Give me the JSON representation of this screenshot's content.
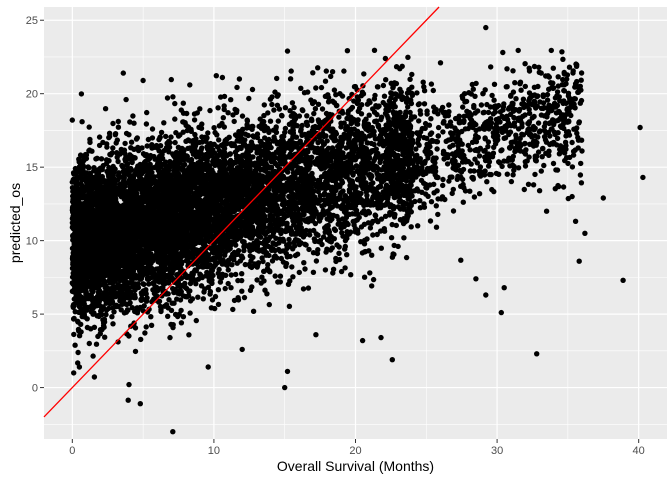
{
  "chart_data": {
    "type": "scatter",
    "title": "",
    "xlabel": "Overall Survival (Months)",
    "ylabel": "predicted_os",
    "xlim": [
      -2.0,
      42.0
    ],
    "ylim": [
      -3.5,
      25.9
    ],
    "x_ticks": [
      0,
      10,
      20,
      30,
      40
    ],
    "y_ticks": [
      0,
      5,
      10,
      15,
      20,
      25
    ],
    "x_tick_labels": [
      "0",
      "10",
      "20",
      "30",
      "40"
    ],
    "y_tick_labels": [
      "0",
      "5",
      "10",
      "15",
      "20",
      "25"
    ],
    "grid": true,
    "background_color": "#ebebeb",
    "gridline_color": "#ffffff",
    "point_color": "#000000",
    "reference_line": {
      "slope": 1,
      "intercept": 0,
      "color": "#ff0000"
    },
    "point_cloud": {
      "description": "dense cloud (~9000 points), predicted_os rises with overall survival",
      "n": 9000,
      "x_range": [
        0,
        36
      ],
      "trend_intercept": 9.8,
      "trend_slope": 0.25,
      "spread": 2.6
    },
    "points": [
      {
        "x": 29.2,
        "y": 24.5
      },
      {
        "x": 15.2,
        "y": 22.9
      },
      {
        "x": 18.9,
        "y": 20.0
      },
      {
        "x": 3.6,
        "y": 21.4
      },
      {
        "x": 26.0,
        "y": 22.1
      },
      {
        "x": 29.0,
        "y": 20.0
      },
      {
        "x": 40.3,
        "y": 14.3
      },
      {
        "x": 40.1,
        "y": 17.7
      },
      {
        "x": 38.9,
        "y": 7.3
      },
      {
        "x": 36.2,
        "y": 10.5
      },
      {
        "x": 37.5,
        "y": 12.9
      },
      {
        "x": 36.0,
        "y": 16.1
      },
      {
        "x": 34.0,
        "y": 17.9
      },
      {
        "x": 33.5,
        "y": 12.0
      },
      {
        "x": 32.8,
        "y": 2.3
      },
      {
        "x": 30.3,
        "y": 5.1
      },
      {
        "x": 29.2,
        "y": 6.3
      },
      {
        "x": 28.5,
        "y": 7.4
      },
      {
        "x": 30.5,
        "y": 6.8
      },
      {
        "x": 35.8,
        "y": 8.6
      },
      {
        "x": 35.3,
        "y": 13.0
      },
      {
        "x": 33.0,
        "y": 13.4
      },
      {
        "x": 7.1,
        "y": -3.0
      },
      {
        "x": 4.8,
        "y": -1.1
      },
      {
        "x": 15.0,
        "y": 0.0
      },
      {
        "x": 15.2,
        "y": 1.1
      },
      {
        "x": 0.5,
        "y": 1.4
      },
      {
        "x": 4.0,
        "y": 0.2
      },
      {
        "x": 0.0,
        "y": 18.2
      },
      {
        "x": 0.1,
        "y": 1.0
      },
      {
        "x": 10.6,
        "y": 21.1
      },
      {
        "x": 11.8,
        "y": 21.0
      },
      {
        "x": 5.0,
        "y": 20.9
      },
      {
        "x": 8.3,
        "y": 20.6
      },
      {
        "x": 22.6,
        "y": 1.9
      },
      {
        "x": 21.8,
        "y": 3.4
      },
      {
        "x": 20.5,
        "y": 3.2
      },
      {
        "x": 17.2,
        "y": 3.6
      },
      {
        "x": 12.0,
        "y": 2.6
      },
      {
        "x": 9.6,
        "y": 1.4
      },
      {
        "x": 1.2,
        "y": 3.0
      },
      {
        "x": 3.8,
        "y": 19.6
      }
    ]
  }
}
